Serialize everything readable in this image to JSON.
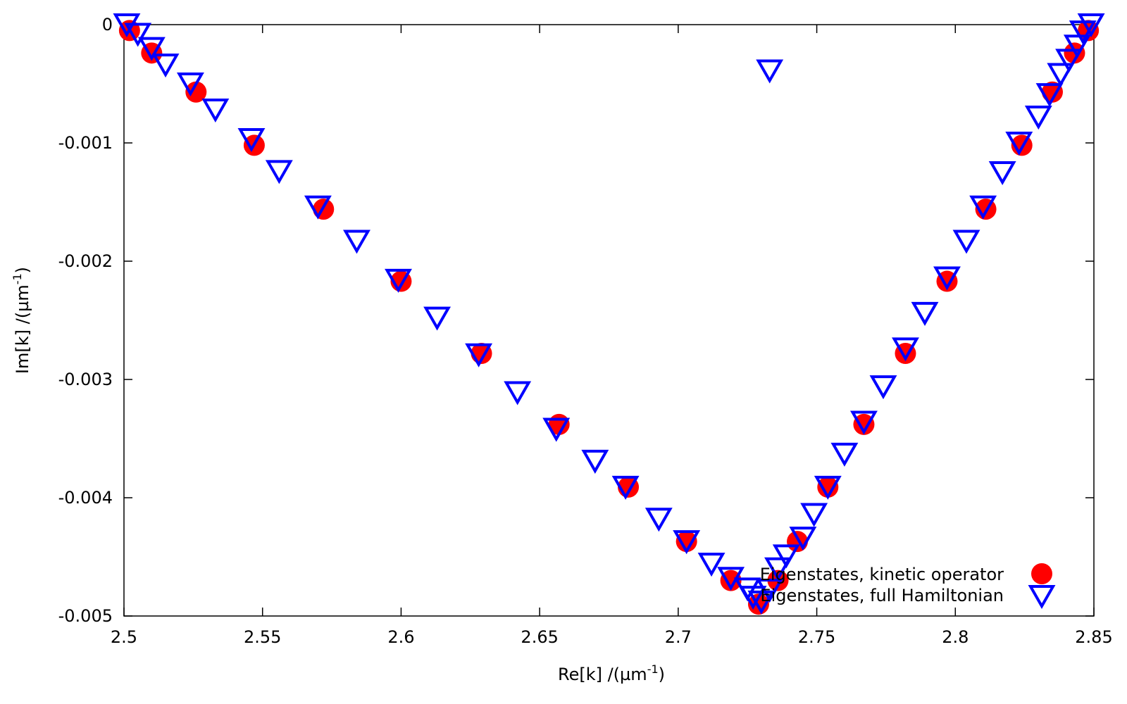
{
  "chart_data": {
    "type": "scatter",
    "xlabel": "Re[k] /(µm",
    "xlabel_sup": "-1",
    "xlabel_end": ")",
    "ylabel": "Im[k] /(µm",
    "ylabel_sup": "-1",
    "ylabel_end": ")",
    "xlim": [
      2.5,
      2.85
    ],
    "ylim": [
      -0.005,
      0
    ],
    "xticks": [
      2.5,
      2.55,
      2.6,
      2.65,
      2.7,
      2.75,
      2.8,
      2.85
    ],
    "xtick_labels": [
      "2.5",
      "2.55",
      "2.6",
      "2.65",
      "2.7",
      "2.75",
      "2.8",
      "2.85"
    ],
    "yticks": [
      0,
      -0.001,
      -0.002,
      -0.003,
      -0.004,
      -0.005
    ],
    "ytick_labels": [
      "0",
      "-0.001",
      "-0.002",
      "-0.003",
      "-0.004",
      "-0.005"
    ],
    "grid": false,
    "legend_position": "bottom-right",
    "series": [
      {
        "name": "Eigenstates, kinetic operator",
        "marker": "filled-circle",
        "color": "#ff0000",
        "points": [
          [
            2.502,
            -5e-05
          ],
          [
            2.51,
            -0.00024
          ],
          [
            2.526,
            -0.00057
          ],
          [
            2.547,
            -0.00102
          ],
          [
            2.572,
            -0.00156
          ],
          [
            2.6,
            -0.00217
          ],
          [
            2.629,
            -0.00278
          ],
          [
            2.657,
            -0.00338
          ],
          [
            2.682,
            -0.00391
          ],
          [
            2.703,
            -0.00437
          ],
          [
            2.719,
            -0.0047
          ],
          [
            2.729,
            -0.0049
          ],
          [
            2.736,
            -0.0047
          ],
          [
            2.743,
            -0.00437
          ],
          [
            2.754,
            -0.00391
          ],
          [
            2.767,
            -0.00338
          ],
          [
            2.782,
            -0.00278
          ],
          [
            2.797,
            -0.00217
          ],
          [
            2.811,
            -0.00156
          ],
          [
            2.824,
            -0.00102
          ],
          [
            2.835,
            -0.00057
          ],
          [
            2.843,
            -0.00024
          ],
          [
            2.848,
            -5e-05
          ]
        ]
      },
      {
        "name": "Eigenstates, full Hamiltonian",
        "marker": "open-triangle-down",
        "color": "#0000ff",
        "points": [
          [
            2.501,
            0.0
          ],
          [
            2.505,
            -8e-05
          ],
          [
            2.51,
            -0.0002
          ],
          [
            2.515,
            -0.00034
          ],
          [
            2.524,
            -0.0005
          ],
          [
            2.533,
            -0.00072
          ],
          [
            2.546,
            -0.00097
          ],
          [
            2.556,
            -0.00124
          ],
          [
            2.57,
            -0.00154
          ],
          [
            2.584,
            -0.00183
          ],
          [
            2.599,
            -0.00216
          ],
          [
            2.613,
            -0.00248
          ],
          [
            2.628,
            -0.00279
          ],
          [
            2.642,
            -0.00311
          ],
          [
            2.656,
            -0.00342
          ],
          [
            2.67,
            -0.00369
          ],
          [
            2.681,
            -0.00391
          ],
          [
            2.693,
            -0.00418
          ],
          [
            2.703,
            -0.00437
          ],
          [
            2.712,
            -0.00456
          ],
          [
            2.719,
            -0.00468
          ],
          [
            2.725,
            -0.00477
          ],
          [
            2.727,
            -0.00484
          ],
          [
            2.73,
            -0.00488
          ],
          [
            2.733,
            -0.00478
          ],
          [
            2.736,
            -0.0046
          ],
          [
            2.739,
            -0.00449
          ],
          [
            2.745,
            -0.00434
          ],
          [
            2.749,
            -0.00414
          ],
          [
            2.754,
            -0.00391
          ],
          [
            2.76,
            -0.00363
          ],
          [
            2.767,
            -0.00336
          ],
          [
            2.774,
            -0.00306
          ],
          [
            2.782,
            -0.00274
          ],
          [
            2.789,
            -0.00244
          ],
          [
            2.797,
            -0.00214
          ],
          [
            2.804,
            -0.00183
          ],
          [
            2.81,
            -0.00154
          ],
          [
            2.817,
            -0.00125
          ],
          [
            2.823,
            -0.001
          ],
          [
            2.83,
            -0.00078
          ],
          [
            2.834,
            -0.00059
          ],
          [
            2.838,
            -0.00042
          ],
          [
            2.841,
            -0.0003
          ],
          [
            2.844,
            -0.00018
          ],
          [
            2.846,
            -6e-05
          ],
          [
            2.849,
            0.0
          ],
          [
            2.733,
            -0.00039
          ]
        ]
      }
    ]
  }
}
